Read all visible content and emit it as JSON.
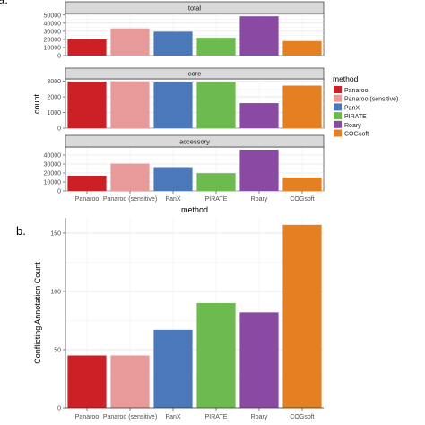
{
  "figure": {
    "panel_a_label": "a.",
    "panel_b_label": "b."
  },
  "legend": {
    "title": "method",
    "items": [
      {
        "name": "Panaroo",
        "color": "#cc1f26"
      },
      {
        "name": "Panaroo (sensitive)",
        "color": "#e89a9b"
      },
      {
        "name": "PanX",
        "color": "#4a78b8"
      },
      {
        "name": "PIRATE",
        "color": "#6dbb4e"
      },
      {
        "name": "Roary",
        "color": "#8a4aa3"
      },
      {
        "name": "COGsoft",
        "color": "#e47f22"
      }
    ]
  },
  "chart_data": [
    {
      "type": "bar",
      "panel": "a",
      "facet": "total",
      "categories": [
        "Panaroo",
        "Panaroo (sensitive)",
        "PanX",
        "PIRATE",
        "Roary",
        "COGsoft"
      ],
      "values": [
        20000,
        33500,
        29500,
        22000,
        48500,
        18000
      ],
      "yticks": [
        0,
        10000,
        20000,
        30000,
        40000,
        50000
      ],
      "ylim": [
        0,
        52000
      ],
      "ylabel": "count",
      "xlabel": "method",
      "grid": true
    },
    {
      "type": "bar",
      "panel": "a",
      "facet": "core",
      "categories": [
        "Panaroo",
        "Panaroo (sensitive)",
        "PanX",
        "PIRATE",
        "Roary",
        "COGsoft"
      ],
      "values": [
        2980,
        2990,
        2920,
        2950,
        1600,
        2720
      ],
      "yticks": [
        0,
        1000,
        2000,
        3000
      ],
      "ylim": [
        0,
        3150
      ],
      "grid": true
    },
    {
      "type": "bar",
      "panel": "a",
      "facet": "accessory",
      "categories": [
        "Panaroo",
        "Panaroo (sensitive)",
        "PanX",
        "PIRATE",
        "Roary",
        "COGsoft"
      ],
      "values": [
        17000,
        30500,
        26500,
        19800,
        46000,
        15000
      ],
      "yticks": [
        0,
        10000,
        20000,
        30000,
        40000
      ],
      "ylim": [
        0,
        49000
      ],
      "grid": true
    },
    {
      "type": "bar",
      "panel": "b",
      "categories": [
        "Panaroo",
        "Panaroo (sensitive)",
        "PanX",
        "PIRATE",
        "Roary",
        "COGsoft"
      ],
      "values": [
        45,
        45,
        67,
        90,
        82,
        157
      ],
      "yticks": [
        0,
        50,
        100,
        150
      ],
      "ylim": [
        0,
        163
      ],
      "ylabel": "Conflicting Annotation Count",
      "grid": true
    }
  ]
}
